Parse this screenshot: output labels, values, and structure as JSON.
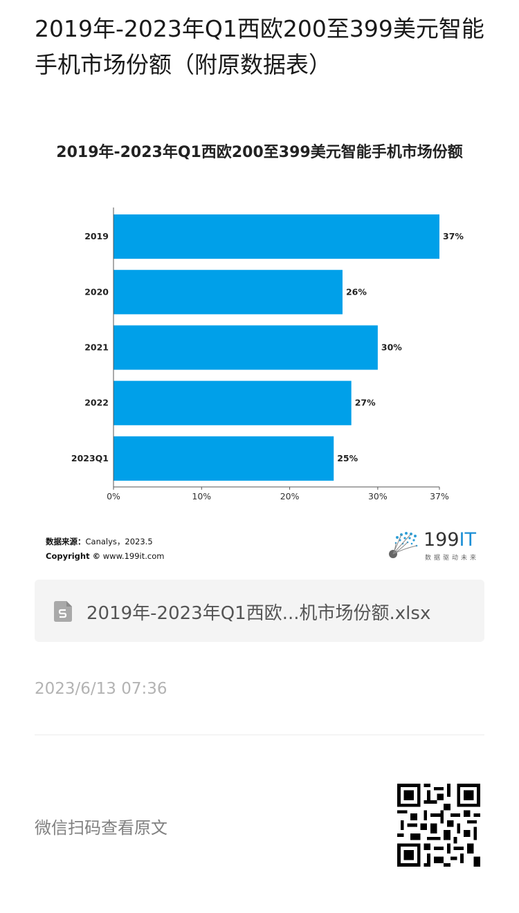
{
  "article": {
    "title": "2019年-2023年Q1西欧200至399美元智能手机市场份额（附原数据表）"
  },
  "chart_data": {
    "type": "bar",
    "orientation": "horizontal",
    "title": "2019年-2023年Q1西欧200至399美元智能手机市场份额",
    "categories": [
      "2019",
      "2020",
      "2021",
      "2022",
      "2023Q1"
    ],
    "values": [
      37,
      26,
      30,
      27,
      25
    ],
    "value_labels": [
      "37%",
      "26%",
      "30%",
      "27%",
      "25%"
    ],
    "xlim": [
      0,
      37
    ],
    "xticks": [
      0,
      10,
      20,
      30,
      37
    ],
    "xtick_labels": [
      "0%",
      "10%",
      "20%",
      "30%",
      "37%"
    ],
    "bar_color": "#00a0e9",
    "grid": false,
    "legend": "none"
  },
  "source": {
    "label": "数据来源：",
    "value": "Canalys，2023.5",
    "copyright_label": "Copyright ©",
    "copyright_value": "www.199it.com"
  },
  "brand": {
    "name_num": "199",
    "name_it": "IT",
    "slogan": "数据驱动未来",
    "accent": "#1b8fd6"
  },
  "attachment": {
    "file_name": "2019年-2023年Q1西欧...机市场份额.xlsx",
    "icon": "spreadsheet-file-icon"
  },
  "meta": {
    "timestamp": "2023/6/13 07:36"
  },
  "footer": {
    "qr_hint": "微信扫码查看原文",
    "qr_icon": "qr-code-icon"
  }
}
